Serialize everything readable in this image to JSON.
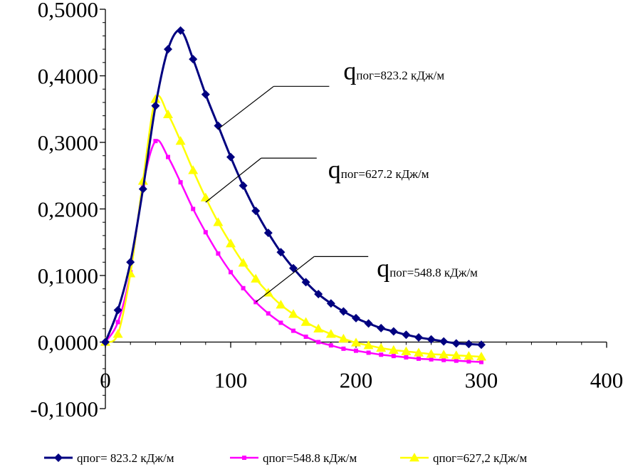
{
  "chart_data": {
    "type": "line",
    "xlim": [
      0,
      400
    ],
    "ylim": [
      -0.1,
      0.5
    ],
    "x_ticks": [
      0,
      100,
      200,
      300,
      400
    ],
    "x_tick_labels": [
      "0",
      "100",
      "200",
      "300",
      "400"
    ],
    "y_ticks": [
      -0.1,
      0,
      0.1,
      0.2,
      0.3,
      0.4,
      0.5
    ],
    "y_tick_labels": [
      "-0,1000",
      "0,0000",
      "0,1000",
      "0,2000",
      "0,3000",
      "0,4000",
      "0,5000"
    ],
    "grid": false,
    "legend_position": "bottom",
    "series": [
      {
        "name": "qпог= 823.2 кДж/м",
        "color": "#000080",
        "marker": "diamond",
        "x": [
          0,
          10,
          20,
          30,
          40,
          50,
          60,
          70,
          80,
          90,
          100,
          110,
          120,
          130,
          140,
          150,
          160,
          170,
          180,
          190,
          200,
          210,
          220,
          230,
          240,
          250,
          260,
          270,
          280,
          290,
          300
        ],
        "y": [
          0.0,
          0.048,
          0.12,
          0.23,
          0.355,
          0.44,
          0.468,
          0.425,
          0.372,
          0.325,
          0.278,
          0.235,
          0.197,
          0.164,
          0.135,
          0.111,
          0.09,
          0.072,
          0.058,
          0.046,
          0.036,
          0.028,
          0.021,
          0.016,
          0.011,
          0.007,
          0.004,
          0.001,
          -0.002,
          -0.003,
          -0.004
        ]
      },
      {
        "name": "qпог=548.8 кДж/м",
        "color": "#ff00ff",
        "marker": "square",
        "x": [
          0,
          10,
          20,
          30,
          40,
          50,
          60,
          70,
          80,
          90,
          100,
          110,
          120,
          130,
          140,
          150,
          160,
          170,
          180,
          190,
          200,
          210,
          220,
          230,
          240,
          250,
          260,
          270,
          280,
          290,
          300
        ],
        "y": [
          0.0,
          0.03,
          0.105,
          0.235,
          0.302,
          0.278,
          0.24,
          0.2,
          0.165,
          0.133,
          0.105,
          0.081,
          0.06,
          0.043,
          0.029,
          0.017,
          0.008,
          0.0,
          -0.005,
          -0.01,
          -0.013,
          -0.016,
          -0.019,
          -0.021,
          -0.023,
          -0.025,
          -0.026,
          -0.027,
          -0.028,
          -0.029,
          -0.03
        ]
      },
      {
        "name": "qпог=627,2 кДж/м",
        "color": "#ffff00",
        "marker": "triangle",
        "x": [
          0,
          10,
          20,
          30,
          40,
          50,
          60,
          70,
          80,
          90,
          100,
          110,
          120,
          130,
          140,
          150,
          160,
          170,
          180,
          190,
          200,
          210,
          220,
          230,
          240,
          250,
          260,
          270,
          280,
          290,
          300
        ],
        "y": [
          0.0,
          0.012,
          0.103,
          0.242,
          0.365,
          0.342,
          0.302,
          0.258,
          0.217,
          0.18,
          0.148,
          0.119,
          0.095,
          0.074,
          0.056,
          0.042,
          0.03,
          0.02,
          0.012,
          0.005,
          -0.001,
          -0.005,
          -0.009,
          -0.012,
          -0.014,
          -0.016,
          -0.018,
          -0.019,
          -0.02,
          -0.021,
          -0.022
        ]
      }
    ],
    "annotations": [
      {
        "main": "q",
        "sub": "пог=823.2 кДж/м",
        "x": 90,
        "y": 0.32
      },
      {
        "main": "q",
        "sub": "пог=627.2 кДж/м",
        "x": 80,
        "y": 0.21
      },
      {
        "main": "q",
        "sub": "пог=548.8 кДж/м",
        "x": 120,
        "y": 0.06
      }
    ]
  }
}
